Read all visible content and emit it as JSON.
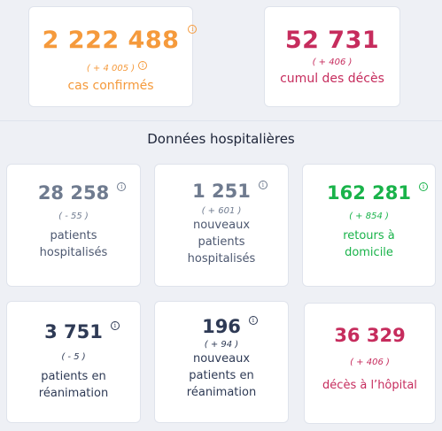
{
  "summary": {
    "cases": {
      "value": "2 222 488",
      "delta": "( + 4 005 )",
      "label": "cas confirmés"
    },
    "deaths": {
      "value": "52 731",
      "delta": "( + 406 )",
      "label": "cumul des décès"
    }
  },
  "section_title": "Données hospitalières",
  "hospital": {
    "hospitalized": {
      "value": "28 258",
      "delta": "( - 55 )",
      "label_1": "patients",
      "label_2": "hospitalisés"
    },
    "new_hospitalized": {
      "value": "1 251",
      "delta": "( + 601 )",
      "label_1": "nouveaux",
      "label_2": "patients",
      "label_3": "hospitalisés"
    },
    "returned_home": {
      "value": "162 281",
      "delta": "( + 854 )",
      "label_1": "retours à",
      "label_2": "domicile"
    },
    "icu": {
      "value": "3 751",
      "delta": "( - 5 )",
      "label_1": "patients en",
      "label_2": "réanimation"
    },
    "new_icu": {
      "value": "196",
      "delta": "( + 94 )",
      "label_1": "nouveaux",
      "label_2": "patients en",
      "label_3": "réanimation"
    },
    "hospital_deaths": {
      "value": "36 329",
      "delta": "( + 406 )",
      "label": "décès à l’hôpital"
    }
  },
  "icons": {
    "info": "info-circle-icon",
    "info_glyph": "i"
  },
  "colors": {
    "orange": "#f59a3c",
    "crimson": "#c62c5d",
    "slate": "#6f7b8f",
    "green": "#19b34a",
    "navy": "#2e3a55"
  }
}
